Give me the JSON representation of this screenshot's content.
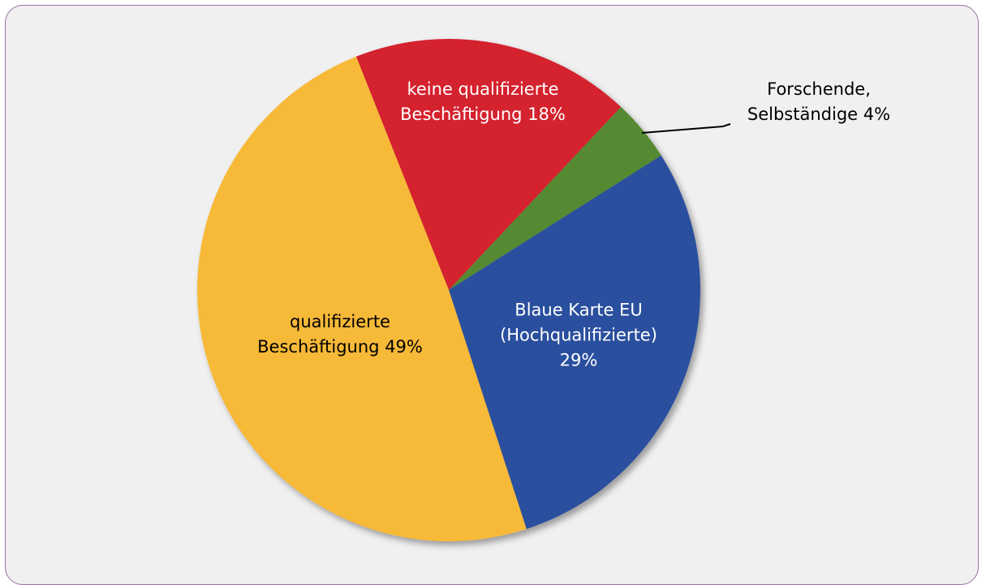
{
  "chart_data": {
    "type": "pie",
    "categories": [
      "keine qualifizierte Beschäftigung",
      "Forschende, Selbständige",
      "Blaue Karte EU (Hochqualifizierte)",
      "qualifizierte Beschäftigung"
    ],
    "values": [
      18,
      4,
      29,
      49
    ],
    "value_labels": [
      "18%",
      "4%",
      "29%",
      "49%"
    ],
    "colors": [
      "#d4202e",
      "#548a33",
      "#2a4f9e",
      "#f7b938"
    ]
  }
}
